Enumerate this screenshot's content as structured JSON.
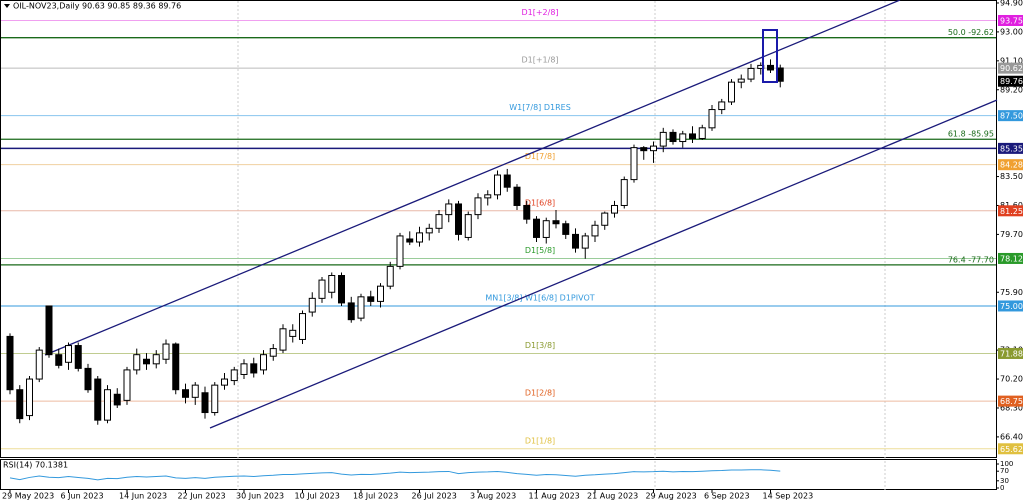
{
  "chart_data": {
    "type": "candlestick",
    "title": "OIL-NOV23,Daily  90.63 90.85 89.36 89.76",
    "categories": [
      "29 May 2023",
      null,
      null,
      null,
      null,
      null,
      "6 Jun 2023",
      null,
      null,
      null,
      null,
      null,
      "14 Jun 2023",
      null,
      null,
      null,
      null,
      null,
      "22 Jun 2023",
      null,
      null,
      null,
      null,
      null,
      "30 Jun 2023",
      null,
      null,
      null,
      null,
      null,
      "10 Jul 2023",
      null,
      null,
      null,
      null,
      null,
      "18 Jul 2023",
      null,
      null,
      null,
      null,
      null,
      "26 Jul 2023",
      null,
      null,
      null,
      null,
      null,
      "3 Aug 2023",
      null,
      null,
      null,
      null,
      null,
      "11 Aug 2023",
      null,
      null,
      null,
      null,
      null,
      "21 Aug 2023",
      null,
      null,
      null,
      null,
      null,
      "29 Aug 2023",
      null,
      null,
      null,
      null,
      null,
      "6 Sep 2023",
      null,
      null,
      null,
      null,
      null,
      "14 Sep 2023",
      null
    ],
    "open": [
      73.0,
      69.5,
      67.8,
      70.2,
      75.0,
      71.8,
      71.3,
      72.4,
      70.9,
      70.2,
      67.5,
      69.2,
      68.8,
      70.8,
      71.5,
      71.2,
      71.5,
      72.5,
      69.5,
      69.0,
      69.3,
      68.0,
      69.8,
      70.1,
      70.5,
      71.2,
      70.8,
      71.7,
      72.1,
      73.0,
      72.8,
      74.6,
      75.5,
      75.9,
      77.0,
      75.2,
      74.2,
      75.6,
      75.3,
      76.3,
      77.6,
      79.4,
      79.2,
      79.8,
      80.1,
      81.0,
      81.7,
      79.5,
      81.0,
      82.1,
      82.3,
      83.6,
      82.8,
      81.6,
      80.7,
      79.5,
      80.6,
      80.4,
      79.7,
      78.8,
      79.6,
      80.3,
      81.1,
      81.6,
      83.3,
      85.4,
      85.2,
      85.5,
      86.4,
      85.8,
      86.3,
      86.0,
      86.7,
      87.9,
      88.4,
      89.7,
      89.9,
      90.6,
      90.8,
      90.63
    ],
    "high": [
      73.2,
      69.8,
      70.4,
      72.3,
      75.0,
      72.2,
      72.6,
      72.6,
      71.2,
      70.4,
      69.8,
      69.6,
      71.0,
      72.2,
      71.9,
      72.1,
      72.8,
      72.6,
      69.9,
      70.0,
      69.7,
      70.0,
      70.6,
      71.0,
      71.5,
      71.6,
      72.1,
      72.5,
      73.8,
      73.8,
      74.7,
      75.9,
      76.9,
      77.2,
      77.2,
      75.6,
      75.8,
      76.0,
      76.5,
      77.9,
      79.8,
      79.9,
      80.2,
      80.4,
      81.3,
      82.0,
      81.9,
      81.2,
      82.4,
      82.6,
      83.9,
      84.0,
      83.0,
      81.9,
      80.9,
      80.8,
      81.3,
      80.6,
      80.1,
      79.8,
      80.6,
      81.2,
      81.9,
      83.5,
      85.6,
      85.5,
      85.8,
      86.7,
      86.6,
      86.5,
      86.8,
      86.9,
      88.2,
      88.6,
      89.9,
      90.2,
      90.9,
      91.0,
      91.2,
      90.85
    ],
    "low": [
      69.2,
      67.3,
      67.5,
      70.0,
      71.6,
      70.9,
      70.8,
      70.7,
      69.3,
      67.2,
      67.3,
      68.3,
      68.5,
      70.5,
      70.8,
      70.9,
      71.2,
      69.2,
      68.6,
      68.5,
      67.6,
      67.8,
      69.5,
      69.8,
      70.2,
      70.3,
      70.5,
      71.4,
      71.9,
      72.6,
      72.5,
      74.3,
      75.2,
      75.5,
      75.0,
      73.9,
      74.0,
      75.0,
      74.9,
      76.1,
      77.4,
      79.0,
      78.9,
      79.3,
      79.8,
      80.5,
      79.3,
      79.3,
      80.7,
      81.6,
      82.0,
      82.5,
      81.3,
      80.4,
      79.2,
      79.1,
      80.1,
      79.4,
      78.5,
      78.1,
      79.2,
      80.0,
      80.8,
      81.4,
      83.1,
      84.6,
      84.4,
      85.1,
      85.6,
      85.4,
      85.7,
      85.9,
      86.5,
      87.6,
      88.2,
      89.3,
      89.7,
      90.2,
      90.3,
      89.36
    ],
    "close": [
      69.5,
      67.6,
      70.2,
      72.1,
      71.8,
      71.1,
      72.4,
      70.9,
      69.5,
      67.5,
      69.5,
      68.5,
      70.8,
      71.8,
      71.2,
      71.8,
      72.5,
      69.5,
      69.0,
      69.8,
      68.0,
      69.8,
      70.2,
      70.8,
      71.2,
      70.6,
      71.8,
      72.2,
      73.5,
      73.4,
      74.5,
      75.5,
      76.7,
      77.0,
      75.2,
      74.1,
      75.6,
      75.3,
      76.3,
      77.6,
      79.6,
      79.2,
      79.8,
      80.1,
      81.0,
      81.7,
      79.7,
      81.0,
      82.1,
      82.3,
      83.6,
      82.8,
      81.6,
      80.7,
      79.5,
      80.6,
      80.4,
      79.7,
      78.8,
      79.6,
      80.3,
      81.1,
      81.6,
      83.3,
      85.4,
      85.2,
      85.5,
      86.4,
      85.8,
      86.3,
      86.0,
      86.7,
      87.9,
      88.4,
      89.7,
      89.9,
      90.6,
      90.8,
      90.5,
      89.76
    ],
    "ylim": [
      65.08,
      95.03
    ],
    "yticks": [
      {
        "value": 94.9,
        "label": "94.90"
      },
      {
        "value": 93.0,
        "label": "93.00"
      },
      {
        "value": 91.1,
        "label": "91.10"
      },
      {
        "value": 89.2,
        "label": "89.20"
      },
      {
        "value": 83.5,
        "label": "83.50"
      },
      {
        "value": 81.6,
        "label": "81.60"
      },
      {
        "value": 79.7,
        "label": "79.70"
      },
      {
        "value": 75.9,
        "label": "75.90"
      },
      {
        "value": 72.1,
        "label": "72.10"
      },
      {
        "value": 70.2,
        "label": "70.20"
      },
      {
        "value": 68.3,
        "label": "68.30"
      },
      {
        "value": 66.4,
        "label": "66.40"
      }
    ],
    "levels": [
      {
        "name": "D1[+2/8]",
        "value": 93.75,
        "color": "#e020e0",
        "line_color": "#f0a0f0"
      },
      {
        "name": "D1[+1/8]",
        "value": 90.62,
        "color": "#999999",
        "line_color": "#bbbbbb"
      },
      {
        "name": "W1[7/8] D1RES",
        "value": 87.5,
        "value_label": "87.50",
        "color": "#3399dd",
        "line_color": "#88c4ee"
      },
      {
        "value": 85.35,
        "color": "#1a1a7a",
        "line_color": "#1a1a7a"
      },
      {
        "name": "D1[7/8]",
        "value": 84.28,
        "color": "#f0a030",
        "line_color": "#f0d0a0"
      },
      {
        "name": "D1[6/8]",
        "value": 81.25,
        "color": "#e04020",
        "line_color": "#e8b8a8"
      },
      {
        "name": "D1[5/8]",
        "value": 78.12,
        "color": "#2a9a2a",
        "line_color": "#9acc9a"
      },
      {
        "name": "MN1[3/8] W1[6/8] D1PIVOT",
        "value": 75.0,
        "value_label": "75.00",
        "color": "#3399dd",
        "line_color": "#3399dd"
      },
      {
        "name": "D1[3/8]",
        "value": 71.88,
        "color": "#8a9a30",
        "line_color": "#c0cc90"
      },
      {
        "name": "D1[2/8]",
        "value": 68.75,
        "color": "#e06020",
        "line_color": "#eebba0"
      },
      {
        "name": "D1[1/8]",
        "value": 65.62,
        "color": "#e0c040",
        "line_color": "#eedd99"
      }
    ],
    "fib_levels": [
      {
        "label": "50.0 -92.62",
        "value": 92.62
      },
      {
        "label": "61.8 -85.95",
        "value": 85.95
      },
      {
        "label": "76.4 -77.70",
        "value": 77.7
      }
    ],
    "current_price": 89.76,
    "rsi": {
      "label": "RSI(14) 70.1381",
      "ylim": [
        0,
        100
      ],
      "yticks": [
        100,
        70,
        30,
        0
      ],
      "color": "#3399dd",
      "values": [
        42,
        35,
        44,
        50,
        45,
        43,
        48,
        44,
        40,
        34,
        40,
        39,
        45,
        48,
        46,
        48,
        50,
        42,
        40,
        43,
        40,
        45,
        47,
        49,
        50,
        48,
        51,
        53,
        56,
        56,
        59,
        61,
        63,
        64,
        58,
        54,
        57,
        56,
        59,
        62,
        66,
        64,
        65,
        66,
        68,
        69,
        60,
        64,
        66,
        67,
        69,
        65,
        60,
        57,
        53,
        56,
        55,
        52,
        49,
        53,
        55,
        58,
        60,
        64,
        68,
        67,
        68,
        70,
        67,
        69,
        68,
        70,
        72,
        73,
        75,
        75,
        76,
        76,
        74,
        70.1381
      ]
    }
  }
}
